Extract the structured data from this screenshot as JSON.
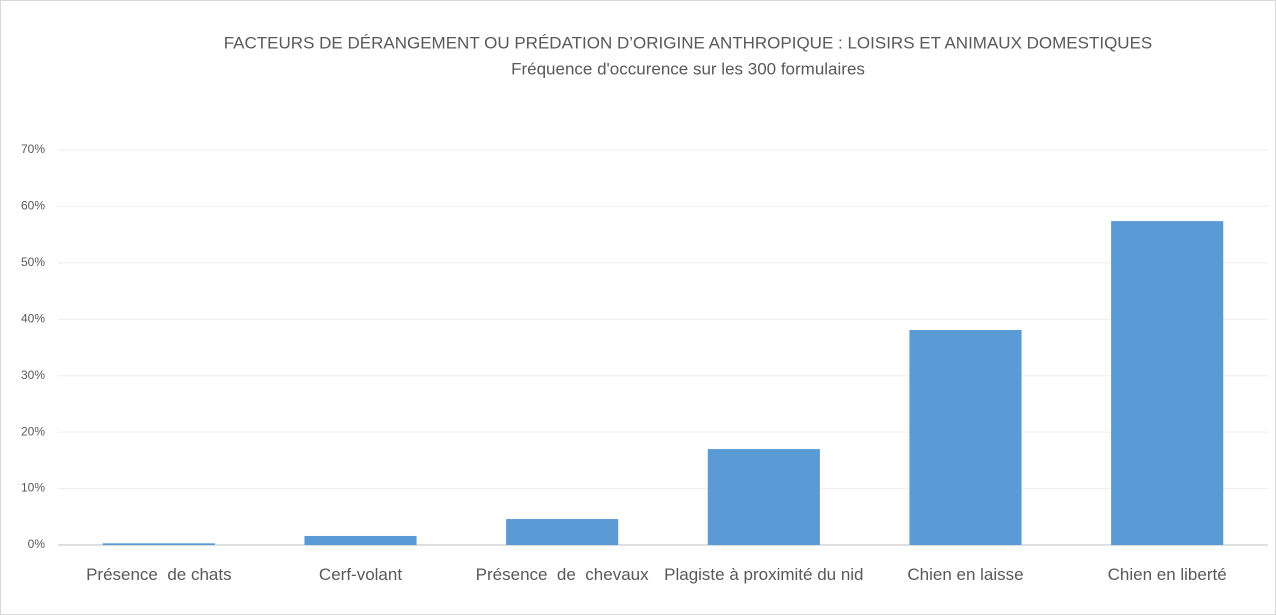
{
  "chart_data": {
    "type": "bar",
    "title": "FACTEURS DE DÉRANGEMENT OU PRÉDATION D’ORIGINE ANTHROPIQUE : LOISIRS ET ANIMAUX DOMESTIQUES",
    "subtitle": "Fréquence d'occurence sur les 300 formulaires",
    "categories": [
      "Présence  de chats",
      "Cerf-volant",
      "Présence  de  chevaux",
      "Plagiste à proximité du nid",
      "Chien en laisse",
      "Chien en liberté"
    ],
    "values": [
      0.3,
      1.6,
      4.6,
      17.0,
      38.1,
      57.4
    ],
    "color": "#5b9bd5",
    "ylim": [
      0,
      70
    ],
    "yticks": [
      {
        "value": 0,
        "label": "0%"
      },
      {
        "value": 10,
        "label": "10%"
      },
      {
        "value": 20,
        "label": "20%"
      },
      {
        "value": 30,
        "label": "30%"
      },
      {
        "value": 40,
        "label": "40%"
      },
      {
        "value": 50,
        "label": "50%"
      },
      {
        "value": 60,
        "label": "60%"
      },
      {
        "value": 70,
        "label": "70%"
      }
    ],
    "grid": true
  }
}
